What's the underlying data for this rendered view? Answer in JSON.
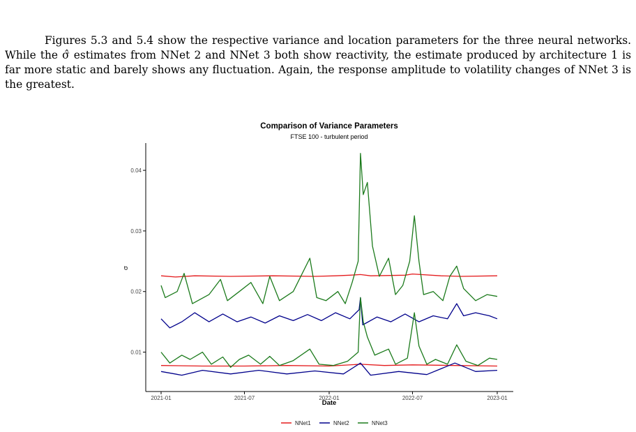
{
  "paragraph": {
    "indent": "",
    "text": "Figures 5.3 and 5.4 show the respective variance and location parameters for the three neural networks. While the σ̂ estimates from NNet 2 and NNet 3 both show reactivity, the estimate produced by architecture 1 is far more static and barely shows any fluctuation. Again, the response amplitude to volatility changes of NNet 3 is the greatest."
  },
  "chart_data": {
    "type": "line",
    "title": "Comparison of Variance Parameters",
    "subtitle": "FTSE 100 - turbulent period",
    "xlabel": "Date",
    "ylabel": "σ",
    "xlim": [
      "2021-01-01",
      "2023-01-01"
    ],
    "ylim": [
      0.0035,
      0.0445
    ],
    "x_ticks": [
      "2021-01",
      "2021-07",
      "2022-01",
      "2022-07",
      "2023-01"
    ],
    "y_ticks": [
      0.01,
      0.02,
      0.03,
      0.04
    ],
    "y_tick_labels": [
      "0.01",
      "0.02",
      "0.03",
      "0.04"
    ],
    "grid": false,
    "legend_position": "bottom",
    "series": [
      {
        "name": "NNet1",
        "color": "#E41A1C",
        "component": "upper",
        "points": [
          [
            "2021-01-01",
            0.0226
          ],
          [
            "2021-02-01",
            0.0224
          ],
          [
            "2021-03-15",
            0.0226
          ],
          [
            "2021-06-01",
            0.0225
          ],
          [
            "2021-09-01",
            0.0226
          ],
          [
            "2021-12-01",
            0.0225
          ],
          [
            "2022-01-15",
            0.0226
          ],
          [
            "2022-02-15",
            0.0227
          ],
          [
            "2022-03-10",
            0.0228
          ],
          [
            "2022-04-01",
            0.0226
          ],
          [
            "2022-06-15",
            0.0227
          ],
          [
            "2022-07-01",
            0.0229
          ],
          [
            "2022-09-01",
            0.0226
          ],
          [
            "2022-10-15",
            0.0225
          ],
          [
            "2023-01-01",
            0.0226
          ]
        ]
      },
      {
        "name": "NNet1",
        "color": "#E41A1C",
        "component": "lower",
        "points": [
          [
            "2021-01-01",
            0.0078
          ],
          [
            "2021-04-01",
            0.0077
          ],
          [
            "2021-07-01",
            0.0077
          ],
          [
            "2021-10-01",
            0.0078
          ],
          [
            "2022-01-01",
            0.0077
          ],
          [
            "2022-03-10",
            0.008
          ],
          [
            "2022-05-01",
            0.0078
          ],
          [
            "2022-07-01",
            0.0079
          ],
          [
            "2022-10-01",
            0.0078
          ],
          [
            "2023-01-01",
            0.0077
          ]
        ]
      },
      {
        "name": "NNet2",
        "color": "#00008B",
        "component": "upper",
        "points": [
          [
            "2021-01-01",
            0.0155
          ],
          [
            "2021-01-20",
            0.014
          ],
          [
            "2021-02-15",
            0.015
          ],
          [
            "2021-03-15",
            0.0165
          ],
          [
            "2021-04-15",
            0.015
          ],
          [
            "2021-05-15",
            0.0163
          ],
          [
            "2021-06-15",
            0.015
          ],
          [
            "2021-07-15",
            0.0158
          ],
          [
            "2021-08-15",
            0.0148
          ],
          [
            "2021-09-15",
            0.016
          ],
          [
            "2021-10-15",
            0.0152
          ],
          [
            "2021-11-15",
            0.0162
          ],
          [
            "2021-12-15",
            0.0152
          ],
          [
            "2022-01-15",
            0.0165
          ],
          [
            "2022-02-15",
            0.0155
          ],
          [
            "2022-03-07",
            0.017
          ],
          [
            "2022-03-10",
            0.019
          ],
          [
            "2022-03-15",
            0.0145
          ],
          [
            "2022-04-15",
            0.0158
          ],
          [
            "2022-05-15",
            0.015
          ],
          [
            "2022-06-15",
            0.0163
          ],
          [
            "2022-07-15",
            0.015
          ],
          [
            "2022-08-15",
            0.016
          ],
          [
            "2022-09-15",
            0.0155
          ],
          [
            "2022-10-05",
            0.018
          ],
          [
            "2022-10-20",
            0.016
          ],
          [
            "2022-11-15",
            0.0165
          ],
          [
            "2022-12-15",
            0.016
          ],
          [
            "2023-01-01",
            0.0155
          ]
        ]
      },
      {
        "name": "NNet2",
        "color": "#00008B",
        "component": "lower",
        "points": [
          [
            "2021-01-01",
            0.0068
          ],
          [
            "2021-02-15",
            0.0062
          ],
          [
            "2021-04-01",
            0.007
          ],
          [
            "2021-06-01",
            0.0064
          ],
          [
            "2021-08-01",
            0.007
          ],
          [
            "2021-10-01",
            0.0064
          ],
          [
            "2021-12-01",
            0.0069
          ],
          [
            "2022-02-01",
            0.0064
          ],
          [
            "2022-03-10",
            0.0082
          ],
          [
            "2022-04-01",
            0.0062
          ],
          [
            "2022-06-01",
            0.0068
          ],
          [
            "2022-08-01",
            0.0063
          ],
          [
            "2022-10-01",
            0.0082
          ],
          [
            "2022-11-15",
            0.0068
          ],
          [
            "2023-01-01",
            0.007
          ]
        ]
      },
      {
        "name": "NNet3",
        "color": "#1B7A1B",
        "component": "upper",
        "points": [
          [
            "2021-01-01",
            0.021
          ],
          [
            "2021-01-10",
            0.019
          ],
          [
            "2021-02-05",
            0.02
          ],
          [
            "2021-02-20",
            0.023
          ],
          [
            "2021-03-10",
            0.018
          ],
          [
            "2021-04-15",
            0.0195
          ],
          [
            "2021-05-10",
            0.022
          ],
          [
            "2021-05-25",
            0.0185
          ],
          [
            "2021-06-20",
            0.02
          ],
          [
            "2021-07-15",
            0.0215
          ],
          [
            "2021-08-10",
            0.018
          ],
          [
            "2021-08-25",
            0.0225
          ],
          [
            "2021-09-15",
            0.0185
          ],
          [
            "2021-10-15",
            0.02
          ],
          [
            "2021-11-20",
            0.0255
          ],
          [
            "2021-12-05",
            0.019
          ],
          [
            "2021-12-25",
            0.0185
          ],
          [
            "2022-01-20",
            0.02
          ],
          [
            "2022-02-05",
            0.018
          ],
          [
            "2022-02-20",
            0.0215
          ],
          [
            "2022-03-05",
            0.025
          ],
          [
            "2022-03-10",
            0.0428
          ],
          [
            "2022-03-16",
            0.036
          ],
          [
            "2022-03-25",
            0.038
          ],
          [
            "2022-04-05",
            0.0275
          ],
          [
            "2022-04-20",
            0.0225
          ],
          [
            "2022-05-10",
            0.0255
          ],
          [
            "2022-05-25",
            0.0195
          ],
          [
            "2022-06-10",
            0.021
          ],
          [
            "2022-06-25",
            0.025
          ],
          [
            "2022-07-05",
            0.0325
          ],
          [
            "2022-07-15",
            0.025
          ],
          [
            "2022-07-25",
            0.0195
          ],
          [
            "2022-08-15",
            0.02
          ],
          [
            "2022-09-05",
            0.0185
          ],
          [
            "2022-09-20",
            0.0225
          ],
          [
            "2022-10-05",
            0.0242
          ],
          [
            "2022-10-20",
            0.0205
          ],
          [
            "2022-11-15",
            0.0185
          ],
          [
            "2022-12-10",
            0.0195
          ],
          [
            "2023-01-01",
            0.0192
          ]
        ]
      },
      {
        "name": "NNet3",
        "color": "#1B7A1B",
        "component": "lower",
        "points": [
          [
            "2021-01-01",
            0.01
          ],
          [
            "2021-01-20",
            0.0082
          ],
          [
            "2021-02-15",
            0.0095
          ],
          [
            "2021-03-05",
            0.0088
          ],
          [
            "2021-04-01",
            0.01
          ],
          [
            "2021-04-20",
            0.008
          ],
          [
            "2021-05-15",
            0.0092
          ],
          [
            "2021-06-01",
            0.0075
          ],
          [
            "2021-06-20",
            0.0088
          ],
          [
            "2021-07-10",
            0.0095
          ],
          [
            "2021-08-05",
            0.008
          ],
          [
            "2021-08-25",
            0.0093
          ],
          [
            "2021-09-15",
            0.0078
          ],
          [
            "2021-10-15",
            0.0086
          ],
          [
            "2021-11-20",
            0.0105
          ],
          [
            "2021-12-10",
            0.008
          ],
          [
            "2022-01-10",
            0.0078
          ],
          [
            "2022-02-10",
            0.0085
          ],
          [
            "2022-03-05",
            0.01
          ],
          [
            "2022-03-10",
            0.019
          ],
          [
            "2022-03-16",
            0.015
          ],
          [
            "2022-03-25",
            0.0125
          ],
          [
            "2022-04-10",
            0.0095
          ],
          [
            "2022-05-10",
            0.0105
          ],
          [
            "2022-05-25",
            0.008
          ],
          [
            "2022-06-20",
            0.009
          ],
          [
            "2022-07-05",
            0.0165
          ],
          [
            "2022-07-15",
            0.011
          ],
          [
            "2022-08-01",
            0.008
          ],
          [
            "2022-08-20",
            0.0088
          ],
          [
            "2022-09-15",
            0.008
          ],
          [
            "2022-10-05",
            0.0112
          ],
          [
            "2022-10-25",
            0.0085
          ],
          [
            "2022-11-20",
            0.0078
          ],
          [
            "2022-12-15",
            0.009
          ],
          [
            "2023-01-01",
            0.0088
          ]
        ]
      }
    ]
  }
}
